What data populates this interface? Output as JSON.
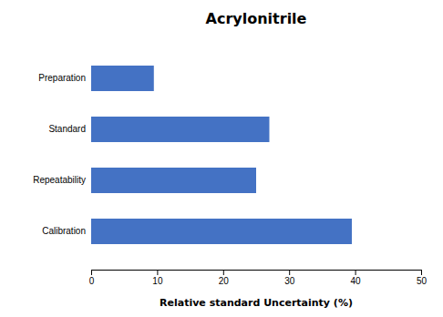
{
  "chart_data": {
    "type": "bar",
    "orientation": "horizontal",
    "title": "Acrylonitrile",
    "categories": [
      "Calibration",
      "Repeatability",
      "Standard",
      "Preparation"
    ],
    "values": [
      39.5,
      25.0,
      27.0,
      9.5
    ],
    "color": "#4472C4",
    "xlabel": "Relative standard Uncertainty (%)",
    "xlim": [
      0,
      50
    ],
    "xticks": [
      0,
      10,
      20,
      30,
      40,
      50
    ],
    "grid": false
  }
}
